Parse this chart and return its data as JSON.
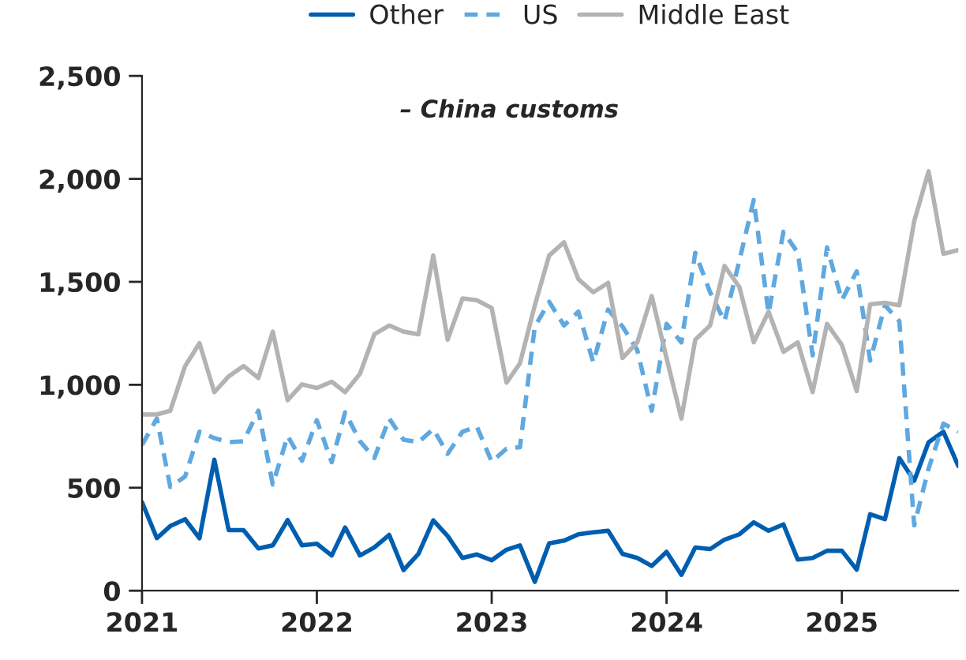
{
  "chart_data": {
    "type": "line",
    "annotations": [
      "– China customs"
    ],
    "x": [
      "2021-01",
      "2021-02",
      "2021-03",
      "2021-04",
      "2021-05",
      "2021-06",
      "2021-07",
      "2021-08",
      "2021-09",
      "2021-10",
      "2021-11",
      "2021-12",
      "2022-01",
      "2022-02",
      "2022-03",
      "2022-04",
      "2022-05",
      "2022-06",
      "2022-07",
      "2022-08",
      "2022-09",
      "2022-10",
      "2022-11",
      "2022-12",
      "2023-01",
      "2023-02",
      "2023-03",
      "2023-04",
      "2023-05",
      "2023-06",
      "2023-07",
      "2023-08",
      "2023-09",
      "2023-10",
      "2023-11",
      "2023-12",
      "2024-01",
      "2024-02",
      "2024-03",
      "2024-04",
      "2024-05",
      "2024-06",
      "2024-07",
      "2024-08",
      "2024-09",
      "2024-10",
      "2024-11",
      "2024-12",
      "2025-01",
      "2025-02",
      "2025-03",
      "2025-04",
      "2025-05",
      "2025-06",
      "2025-07",
      "2025-08",
      "2025-09"
    ],
    "series": [
      {
        "name": "Other",
        "color": "#005eb0",
        "line_style": "solid",
        "values": [
          430,
          255,
          314,
          347,
          255,
          636,
          294,
          294,
          205,
          220,
          343,
          220,
          228,
          171,
          307,
          171,
          210,
          271,
          100,
          179,
          342,
          266,
          159,
          176,
          148,
          199,
          220,
          43,
          230,
          243,
          274,
          284,
          291,
          179,
          159,
          120,
          189,
          77,
          210,
          202,
          248,
          274,
          332,
          291,
          322,
          151,
          159,
          194,
          194,
          102,
          371,
          347,
          644,
          534,
          721,
          772,
          606
        ]
      },
      {
        "name": "US",
        "color": "#5fa8e0",
        "line_style": "dashed",
        "values": [
          708,
          836,
          504,
          555,
          772,
          741,
          721,
          726,
          874,
          516,
          751,
          631,
          828,
          624,
          866,
          726,
          644,
          836,
          733,
          721,
          785,
          665,
          772,
          797,
          626,
          690,
          697,
          1283,
          1403,
          1288,
          1355,
          1109,
          1365,
          1283,
          1168,
          874,
          1296,
          1206,
          1641,
          1449,
          1309,
          1603,
          1897,
          1347,
          1743,
          1641,
          1143,
          1667,
          1411,
          1551,
          1117,
          1386,
          1309,
          317,
          593,
          811,
          772
        ]
      },
      {
        "name": "Middle East",
        "color": "#b3b3b3",
        "line_style": "solid",
        "values": [
          856,
          856,
          874,
          1091,
          1202,
          964,
          1041,
          1091,
          1033,
          1258,
          925,
          1002,
          984,
          1015,
          964,
          1053,
          1245,
          1288,
          1258,
          1245,
          1628,
          1219,
          1419,
          1411,
          1373,
          1010,
          1104,
          1386,
          1628,
          1692,
          1513,
          1449,
          1495,
          1130,
          1206,
          1431,
          1130,
          836,
          1219,
          1288,
          1577,
          1475,
          1206,
          1355,
          1160,
          1206,
          964,
          1296,
          1194,
          969,
          1391,
          1398,
          1386,
          1794,
          2037,
          1636,
          1654
        ]
      }
    ],
    "xlim": [
      "2021-01",
      "2025-09"
    ],
    "xticks": [
      {
        "value": "2021-01",
        "label": "2021"
      },
      {
        "value": "2022-01",
        "label": "2022"
      },
      {
        "value": "2023-01",
        "label": "2023"
      },
      {
        "value": "2024-01",
        "label": "2024"
      },
      {
        "value": "2025-01",
        "label": "2025"
      }
    ],
    "ylim": [
      0,
      2500
    ],
    "yticks": [
      0,
      {
        "value": 500,
        "label": "500"
      },
      {
        "value": 1000,
        "label": "1,000"
      },
      {
        "value": 1500,
        "label": "1,500"
      },
      {
        "value": 2000,
        "label": "2,000"
      },
      {
        "value": 2500,
        "label": "2,500"
      }
    ],
    "grid": false,
    "legend": "top"
  }
}
